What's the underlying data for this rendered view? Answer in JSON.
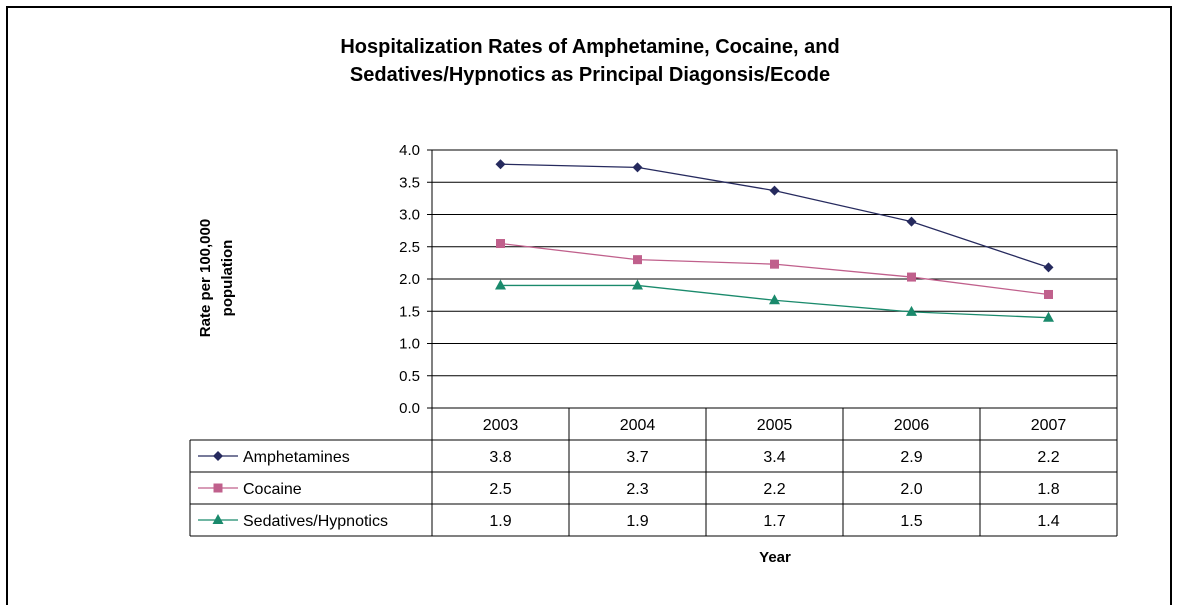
{
  "chart_data": {
    "type": "line",
    "title_line1": "Hospitalization Rates of Amphetamine, Cocaine, and",
    "title_line2": "Sedatives/Hypnotics as Principal Diagonsis/Ecode",
    "ylabel_line1": "Rate per 100,000",
    "ylabel_line2": "population",
    "xlabel": "Year",
    "ylim": [
      0,
      4.0
    ],
    "yticks": [
      "0.0",
      "0.5",
      "1.0",
      "1.5",
      "2.0",
      "2.5",
      "3.0",
      "3.5",
      "4.0"
    ],
    "grid": true,
    "legend_placement": "data-table",
    "categories": [
      "2003",
      "2004",
      "2005",
      "2006",
      "2007"
    ],
    "series": [
      {
        "name": "Amphetamines",
        "values": [
          3.78,
          3.73,
          3.37,
          2.89,
          2.18
        ],
        "labels": [
          "3.8",
          "3.7",
          "3.4",
          "2.9",
          "2.2"
        ],
        "color": "#262a5e",
        "marker": "diamond"
      },
      {
        "name": "Cocaine",
        "values": [
          2.55,
          2.3,
          2.23,
          2.03,
          1.76
        ],
        "labels": [
          "2.5",
          "2.3",
          "2.2",
          "2.0",
          "1.8"
        ],
        "color": "#c0608c",
        "marker": "square"
      },
      {
        "name": "Sedatives/Hypnotics",
        "values": [
          1.9,
          1.9,
          1.67,
          1.49,
          1.4
        ],
        "labels": [
          "1.9",
          "1.9",
          "1.7",
          "1.5",
          "1.4"
        ],
        "color": "#1a8a6c",
        "marker": "triangle"
      }
    ]
  }
}
